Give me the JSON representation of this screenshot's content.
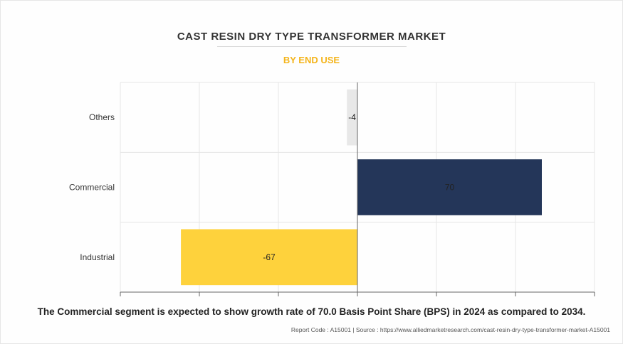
{
  "header": {
    "title": "CAST RESIN DRY TYPE TRANSFORMER MARKET",
    "subtitle": "BY END USE"
  },
  "footer": {
    "caption": "The Commercial segment is expected to show growth rate of 70.0 Basis Point Share (BPS) in 2024 as compared to 2034.",
    "source": "Report Code : A15001  |  Source : https://www.alliedmarketresearch.com/cast-resin-dry-type-transformer-market-A15001"
  },
  "chart_data": {
    "type": "bar",
    "orientation": "horizontal",
    "title": "CAST RESIN DRY TYPE TRANSFORMER MARKET",
    "subtitle": "BY END USE",
    "categories": [
      "Others",
      "Commercial",
      "Industrial"
    ],
    "values": [
      -4,
      70,
      -67
    ],
    "data_labels": [
      "-4",
      "70",
      "-67"
    ],
    "colors": [
      "#e8e8e8",
      "#243659",
      "#fed23c"
    ],
    "xlim": [
      -90,
      90
    ],
    "x_tick_step": 30,
    "show_x_tick_labels": false,
    "grid": true,
    "legend": "none"
  },
  "colors": {
    "title": "#333333",
    "subtitle": "#f4b41a",
    "grid": "#e5e5e5",
    "axis": "#666666"
  }
}
